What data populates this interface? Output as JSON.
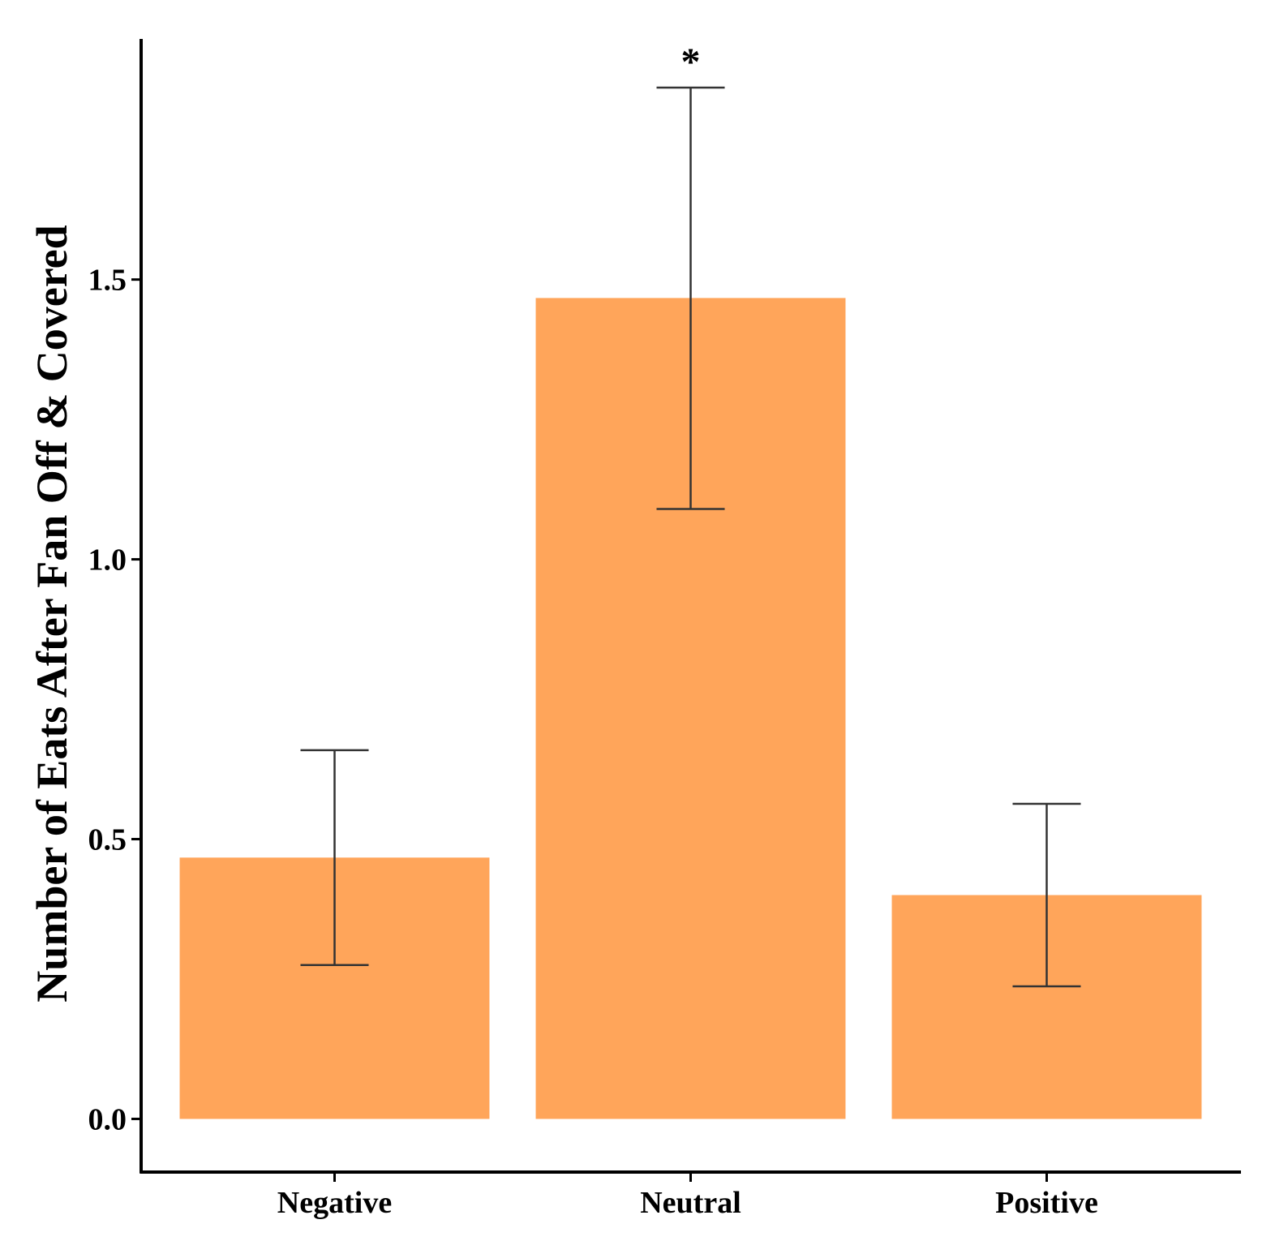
{
  "chart_data": {
    "type": "bar",
    "title": "",
    "xlabel": "",
    "ylabel": "Number of Eats After Fan Off & Covered",
    "categories": [
      "Negative",
      "Neutral",
      "Positive"
    ],
    "values": [
      0.467,
      1.467,
      0.4
    ],
    "error_low": [
      0.275,
      1.09,
      0.237
    ],
    "error_high": [
      0.659,
      1.843,
      0.563
    ],
    "annotations": [
      "",
      "*",
      ""
    ],
    "yticks": [
      0.0,
      0.5,
      1.0,
      1.5
    ],
    "ytick_labels": [
      "0.0",
      "0.5",
      "1.0",
      "1.5"
    ],
    "ylim": [
      -0.095,
      1.93
    ],
    "grid": false,
    "bar_color": "#FFA55A",
    "errorbar_color": "#333333",
    "axis_color": "#000000"
  }
}
